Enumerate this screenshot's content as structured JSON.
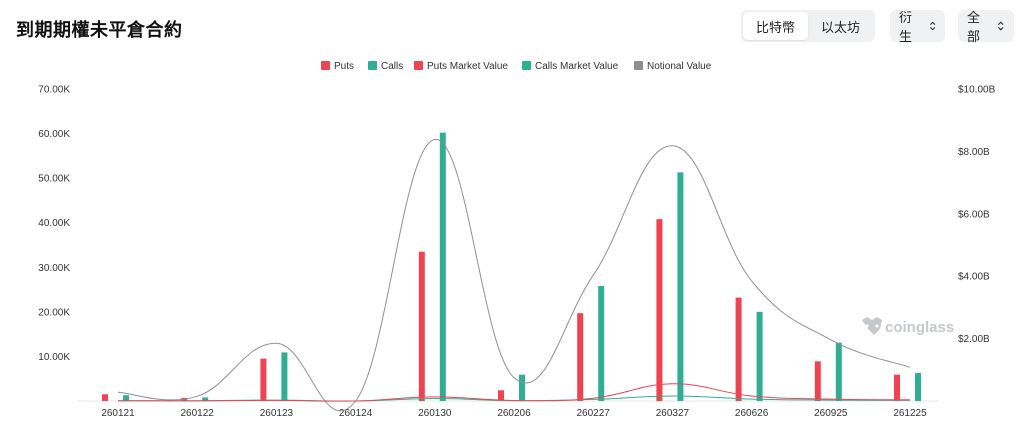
{
  "header": {
    "title": "到期期權未平倉合約",
    "asset_tabs": [
      {
        "label": "比特幣",
        "active": true
      },
      {
        "label": "以太坊",
        "active": false
      }
    ],
    "filter_type": "衍生",
    "filter_scope": "全部"
  },
  "watermark": "coinglass",
  "colors": {
    "puts": "#ef4352",
    "calls": "#2fae93",
    "puts_market_value": "#ef4352",
    "calls_market_value": "#2fae93",
    "notional_value": "#8f8f8f"
  },
  "chart_data": {
    "type": "bar",
    "title": "到期期權未平倉合約",
    "categories": [
      "260121",
      "260122",
      "260123",
      "260124",
      "260130",
      "260206",
      "260227",
      "260327",
      "260626",
      "260925",
      "261225"
    ],
    "legend": [
      "Puts",
      "Calls",
      "Puts Market Value",
      "Calls Market Value",
      "Notional Value"
    ],
    "legend_position": "top-center",
    "y_left": {
      "ticks": [
        10000,
        20000,
        30000,
        40000,
        50000,
        60000,
        70000
      ],
      "tick_labels": [
        "10.00K",
        "20.00K",
        "30.00K",
        "40.00K",
        "50.00K",
        "60.00K",
        "70.00K"
      ],
      "range": [
        0,
        70000
      ]
    },
    "y_right": {
      "ticks": [
        2000000000,
        4000000000,
        6000000000,
        8000000000,
        10000000000
      ],
      "tick_labels": [
        "$2.00B",
        "$4.00B",
        "$6.00B",
        "$8.00B",
        "$10.00B"
      ],
      "range": [
        0,
        10000000000
      ]
    },
    "grid": true,
    "series": [
      {
        "name": "Puts",
        "kind": "bar",
        "axis": "left",
        "values": [
          1500,
          700,
          9500,
          0,
          33500,
          2400,
          19700,
          40800,
          23200,
          8900,
          5900
        ]
      },
      {
        "name": "Calls",
        "kind": "bar",
        "axis": "left",
        "values": [
          1300,
          800,
          10900,
          0,
          60200,
          5900,
          25800,
          51300,
          20000,
          13100,
          6300
        ]
      },
      {
        "name": "Puts Market Value",
        "kind": "line",
        "axis": "right",
        "values": [
          5000000,
          3000000,
          20000000,
          0,
          130000000,
          15000000,
          90000000,
          550000000,
          160000000,
          60000000,
          40000000
        ]
      },
      {
        "name": "Calls Market Value",
        "kind": "line",
        "axis": "right",
        "values": [
          10000000,
          5000000,
          30000000,
          0,
          80000000,
          10000000,
          50000000,
          160000000,
          60000000,
          30000000,
          20000000
        ]
      },
      {
        "name": "Notional Value",
        "kind": "line",
        "axis": "right",
        "values": [
          280000000,
          150000000,
          1850000000,
          0,
          8380000000,
          750000000,
          4030000000,
          8180000000,
          3850000000,
          1960000000,
          1080000000
        ]
      }
    ]
  }
}
